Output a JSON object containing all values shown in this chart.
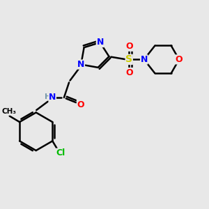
{
  "bg_color": "#e8e8e8",
  "bond_color": "#000000",
  "atom_colors": {
    "N": "#0000ff",
    "O": "#ff0000",
    "S": "#cccc00",
    "Cl": "#00bb00",
    "H": "#7799aa",
    "C": "#000000"
  }
}
